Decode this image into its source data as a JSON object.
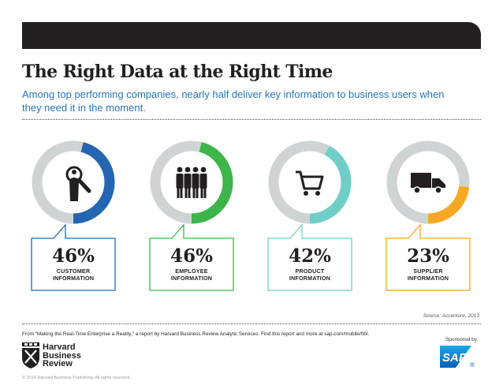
{
  "header": {
    "title": "The Right Data at the Right Time",
    "subtitle": "Among top performing companies, nearly half deliver key information to business users when they need it in the moment."
  },
  "chart_data": {
    "type": "pie",
    "title": "The Right Data at the Right Time",
    "track_color": "#d0d3d4",
    "items": [
      {
        "value": 46,
        "display": "46%",
        "label_lines": [
          "CUSTOMER",
          "INFORMATION"
        ],
        "color": "#2466b1",
        "icon": "magnifier-person-icon"
      },
      {
        "value": 46,
        "display": "46%",
        "label_lines": [
          "EMPLOYEE",
          "INFORMATION"
        ],
        "color": "#3db54a",
        "icon": "people-group-icon"
      },
      {
        "value": 42,
        "display": "42%",
        "label_lines": [
          "PRODUCT",
          "INFORMATION"
        ],
        "color": "#6fcfc8",
        "icon": "shopping-cart-icon"
      },
      {
        "value": 23,
        "display": "23%",
        "label_lines": [
          "SUPPLIER",
          "INFORMATION"
        ],
        "color": "#f7a823",
        "icon": "delivery-truck-icon"
      }
    ]
  },
  "footer": {
    "source": "Source: Accenture, 2013",
    "from_note": "From “Making the Real-Time Enterprise a Reality,” a report by Harvard Business Review Analytic Services. Find this report and more at sap.com/mobile/hbr.",
    "logo_lines": [
      "Harvard",
      "Business",
      "Review"
    ],
    "copyright": "© 2014 Harvard Business Publishing. All rights reserved.",
    "sponsored_by": "Sponsored by",
    "sponsor_logo_text": "SAP",
    "sponsor_logo_mark": "®"
  }
}
